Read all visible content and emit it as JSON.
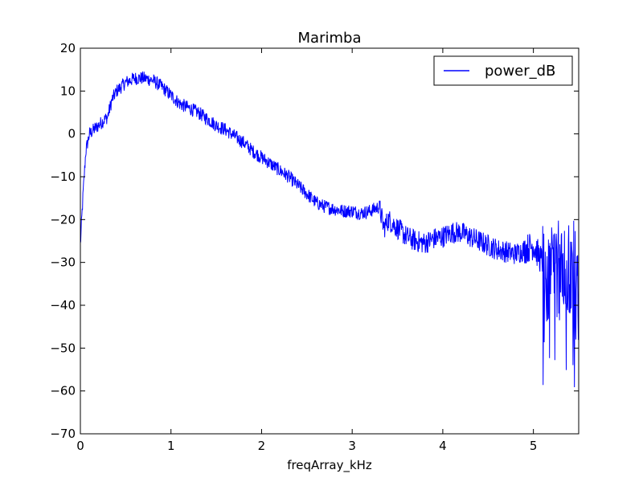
{
  "chart_data": {
    "type": "line",
    "title": "Marimba",
    "xlabel": "freqArray_kHz",
    "ylabel": "",
    "xlim": [
      0,
      5.5
    ],
    "ylim": [
      -70,
      20
    ],
    "x_ticks": [
      "0",
      "1",
      "2",
      "3",
      "4",
      "5"
    ],
    "y_ticks": [
      "20",
      "10",
      "0",
      "−10",
      "−20",
      "−30",
      "−40",
      "−50",
      "−60",
      "−70"
    ],
    "grid": false,
    "legend_position": "top-right",
    "series": [
      {
        "name": "power_dB",
        "color": "#0000ff",
        "x": [
          0.0,
          0.03,
          0.06,
          0.1,
          0.15,
          0.2,
          0.25,
          0.3,
          0.35,
          0.4,
          0.5,
          0.6,
          0.7,
          0.8,
          0.9,
          1.0,
          1.1,
          1.2,
          1.3,
          1.4,
          1.5,
          1.6,
          1.7,
          1.8,
          1.9,
          2.0,
          2.1,
          2.2,
          2.3,
          2.4,
          2.5,
          2.6,
          2.7,
          2.8,
          2.9,
          3.0,
          3.1,
          3.2,
          3.3,
          3.35,
          3.4,
          3.5,
          3.6,
          3.7,
          3.8,
          3.9,
          4.0,
          4.1,
          4.2,
          4.3,
          4.4,
          4.5,
          4.6,
          4.7,
          4.8,
          4.9,
          5.0,
          5.1,
          5.15,
          5.2,
          5.25,
          5.3,
          5.35,
          5.4,
          5.45,
          5.5
        ],
        "y": [
          -26,
          -14,
          -4,
          0,
          1,
          2,
          3,
          4,
          8,
          10,
          12,
          13,
          13,
          12.5,
          11,
          9,
          7,
          6,
          5,
          3.5,
          2,
          1,
          -0.5,
          -2,
          -4,
          -5.5,
          -7,
          -8.5,
          -10,
          -12,
          -14,
          -16,
          -17,
          -17.5,
          -18,
          -18,
          -18.5,
          -18,
          -17,
          -22,
          -20,
          -22,
          -24,
          -25,
          -25.5,
          -24.5,
          -24,
          -23,
          -23,
          -24,
          -25,
          -26,
          -27,
          -27.5,
          -28,
          -27,
          -26,
          -30,
          -32,
          -30,
          -33,
          -31,
          -34,
          -32,
          -33,
          -32
        ]
      }
    ]
  }
}
